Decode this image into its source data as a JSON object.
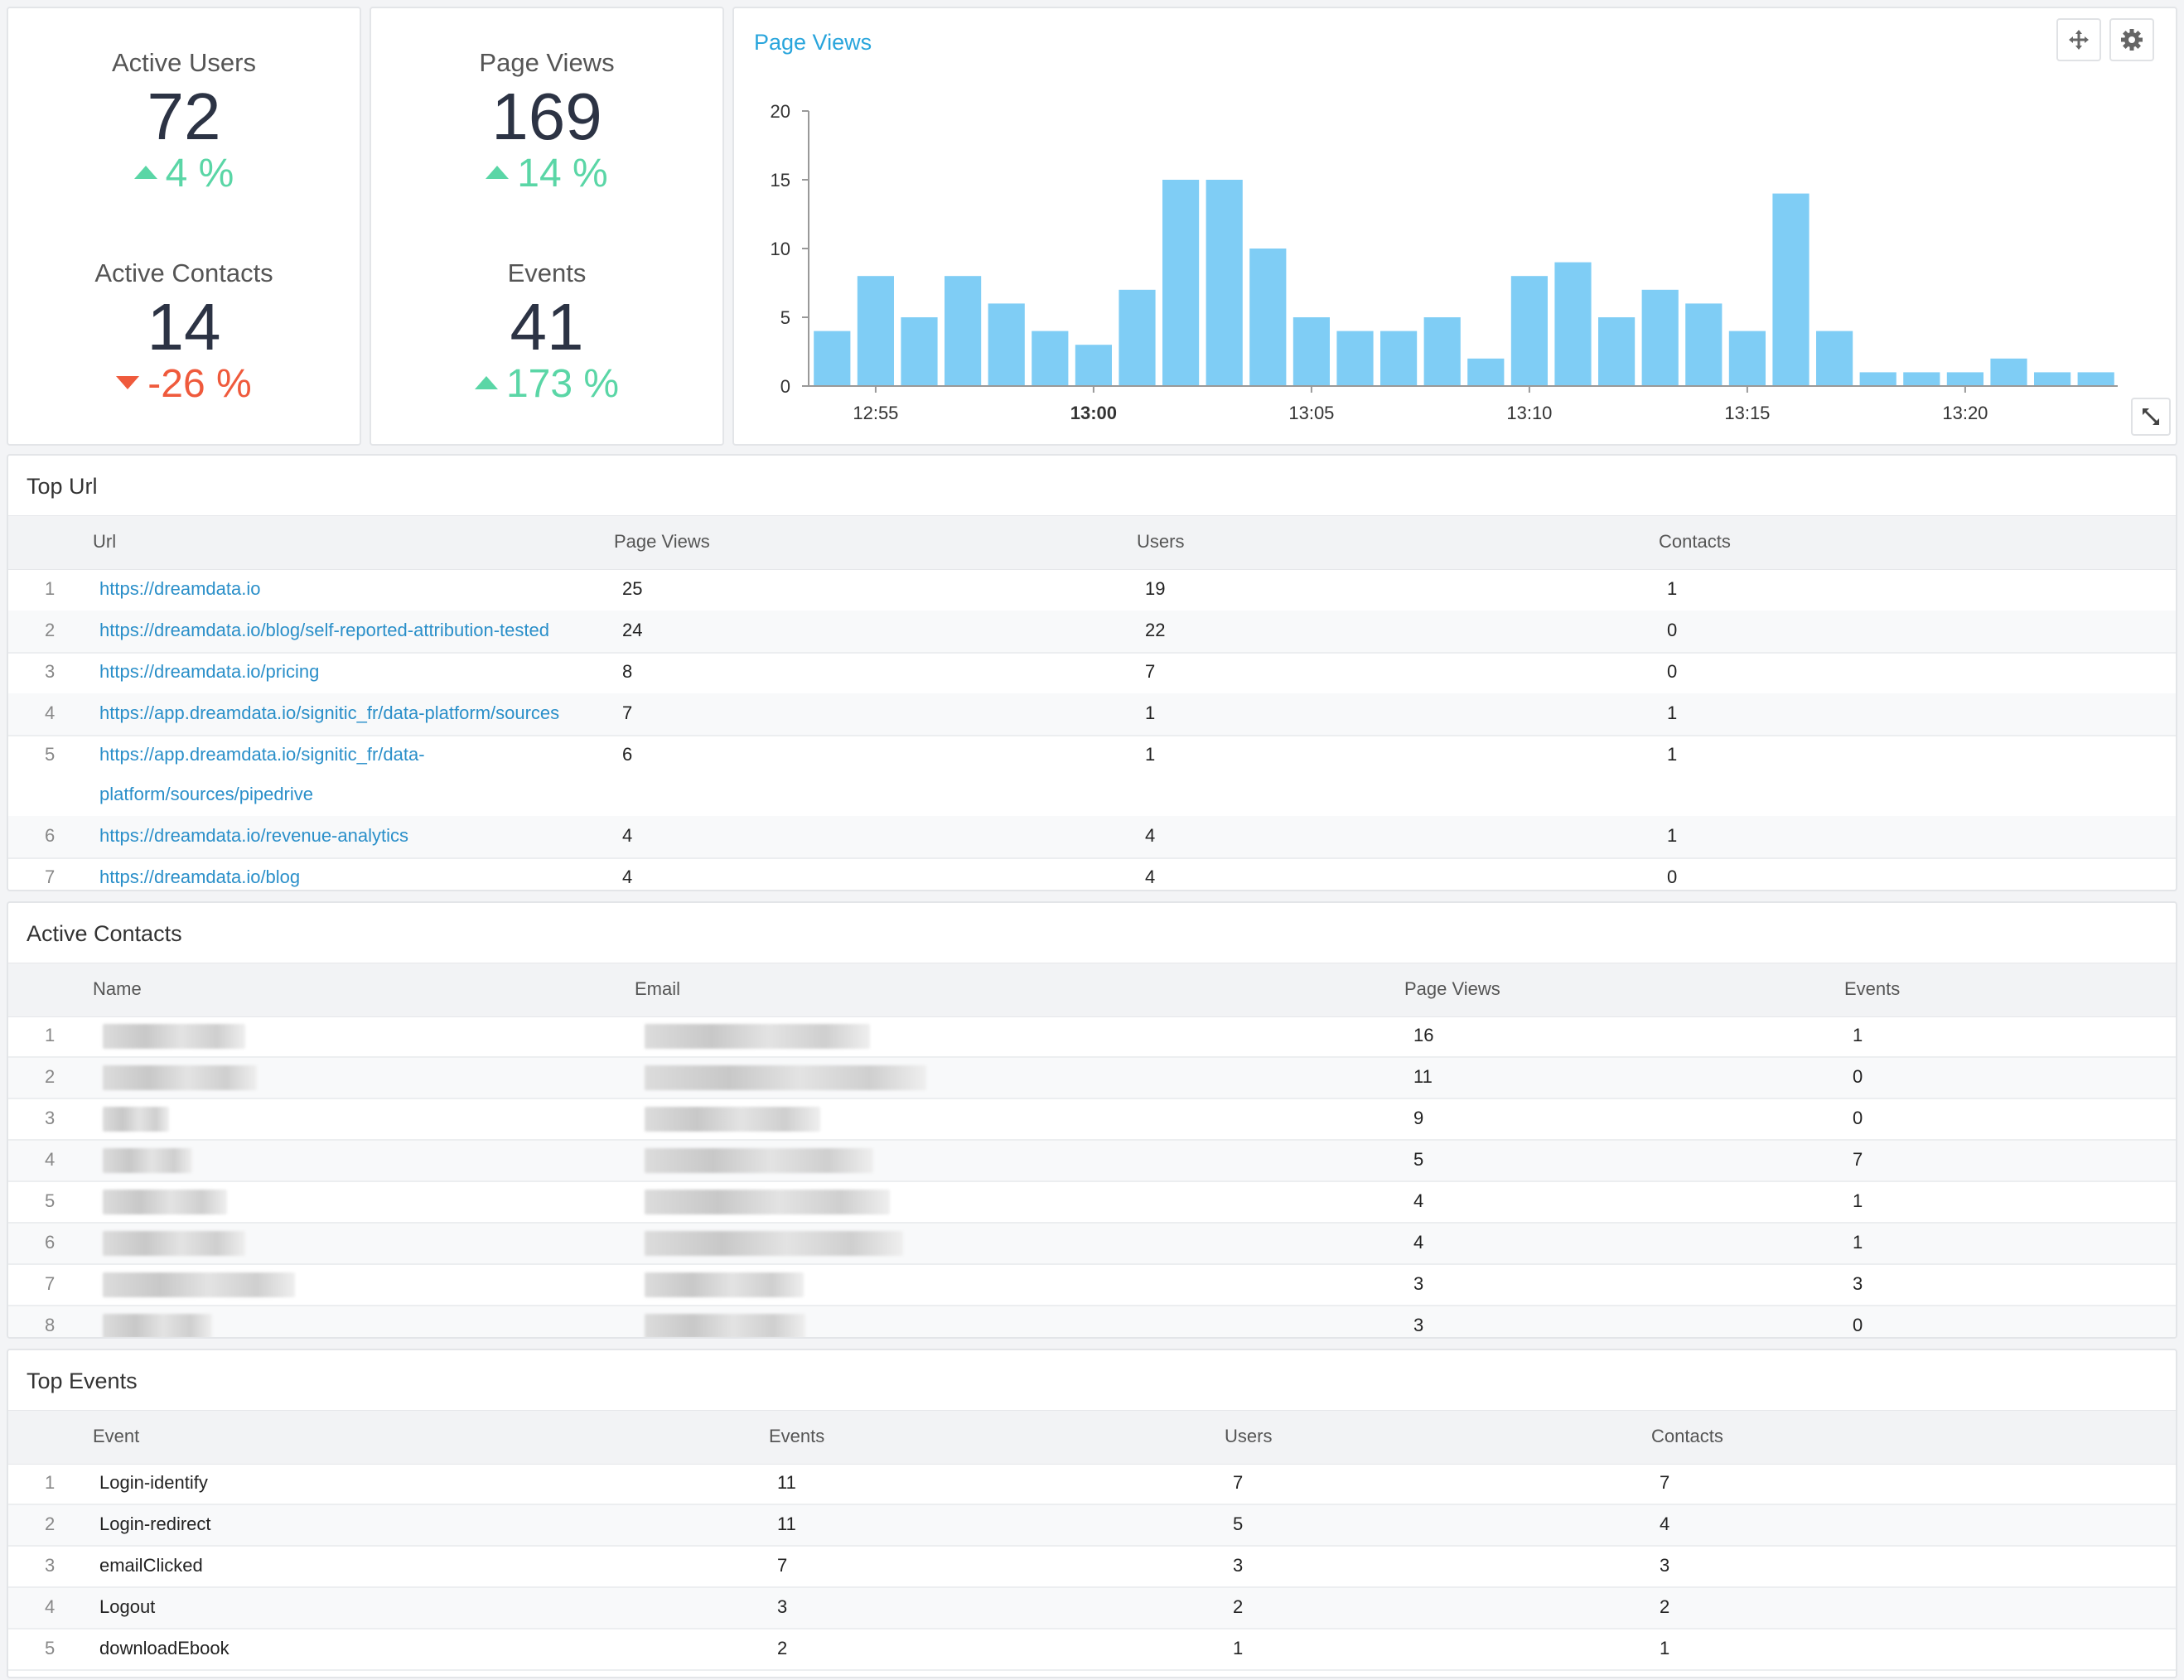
{
  "kpis": {
    "active_users": {
      "label": "Active Users",
      "value": "72",
      "delta": "4 %",
      "direction": "up"
    },
    "page_views": {
      "label": "Page Views",
      "value": "169",
      "delta": "14 %",
      "direction": "up"
    },
    "active_contacts": {
      "label": "Active Contacts",
      "value": "14",
      "delta": "-26 %",
      "direction": "down"
    },
    "events": {
      "label": "Events",
      "value": "41",
      "delta": "173 %",
      "direction": "up"
    }
  },
  "chart_panel": {
    "title": "Page Views",
    "tools": {
      "move_icon": "move-icon",
      "settings_icon": "gear-icon",
      "expand_icon": "expand-icon"
    }
  },
  "chart_data": {
    "type": "bar",
    "values": [
      4,
      8,
      5,
      8,
      6,
      4,
      3,
      7,
      15,
      15,
      10,
      5,
      4,
      4,
      5,
      2,
      8,
      9,
      5,
      7,
      6,
      4,
      14,
      4,
      1,
      1,
      1,
      2,
      1,
      1
    ],
    "x_tick_labels": [
      "12:55",
      "13:00",
      "13:05",
      "13:10",
      "13:15",
      "13:20"
    ],
    "bold_tick": "13:00",
    "y_ticks": [
      "0",
      "5",
      "10",
      "15",
      "20"
    ],
    "ylim": [
      0,
      20
    ],
    "bar_color": "#7fcdf5",
    "grid": false
  },
  "top_url": {
    "title": "Top Url",
    "headers": [
      "Url",
      "Page Views",
      "Users",
      "Contacts"
    ],
    "rows": [
      {
        "idx": "1",
        "url": "https://dreamdata.io",
        "url2": "",
        "pv": "25",
        "users": "19",
        "contacts": "1"
      },
      {
        "idx": "2",
        "url": "https://dreamdata.io/blog/self-reported-attribution-tested",
        "url2": "",
        "pv": "24",
        "users": "22",
        "contacts": "0"
      },
      {
        "idx": "3",
        "url": "https://dreamdata.io/pricing",
        "url2": "",
        "pv": "8",
        "users": "7",
        "contacts": "0"
      },
      {
        "idx": "4",
        "url": "https://app.dreamdata.io/signitic_fr/data-platform/sources",
        "url2": "",
        "pv": "7",
        "users": "1",
        "contacts": "1"
      },
      {
        "idx": "5",
        "url": "https://app.dreamdata.io/signitic_fr/data-",
        "url2": "platform/sources/pipedrive",
        "pv": "6",
        "users": "1",
        "contacts": "1"
      },
      {
        "idx": "6",
        "url": "https://dreamdata.io/revenue-analytics",
        "url2": "",
        "pv": "4",
        "users": "4",
        "contacts": "1"
      },
      {
        "idx": "7",
        "url": "https://dreamdata.io/blog",
        "url2": "",
        "pv": "4",
        "users": "4",
        "contacts": "0"
      }
    ]
  },
  "active_contacts": {
    "title": "Active Contacts",
    "headers": [
      "Name",
      "Email",
      "Page Views",
      "Events"
    ],
    "rows": [
      {
        "idx": "1",
        "pv": "16",
        "events": "1"
      },
      {
        "idx": "2",
        "pv": "11",
        "events": "0"
      },
      {
        "idx": "3",
        "pv": "9",
        "events": "0"
      },
      {
        "idx": "4",
        "pv": "5",
        "events": "7"
      },
      {
        "idx": "5",
        "pv": "4",
        "events": "1"
      },
      {
        "idx": "6",
        "pv": "4",
        "events": "1"
      },
      {
        "idx": "7",
        "pv": "3",
        "events": "3"
      },
      {
        "idx": "8",
        "pv": "3",
        "events": "0"
      }
    ]
  },
  "top_events": {
    "title": "Top Events",
    "headers": [
      "Event",
      "Events",
      "Users",
      "Contacts"
    ],
    "rows": [
      {
        "idx": "1",
        "event": "Login-identify",
        "events": "11",
        "users": "7",
        "contacts": "7"
      },
      {
        "idx": "2",
        "event": "Login-redirect",
        "events": "11",
        "users": "5",
        "contacts": "4"
      },
      {
        "idx": "3",
        "event": "emailClicked",
        "events": "7",
        "users": "3",
        "contacts": "3"
      },
      {
        "idx": "4",
        "event": "Logout",
        "events": "3",
        "users": "2",
        "contacts": "2"
      },
      {
        "idx": "5",
        "event": "downloadEbook",
        "events": "2",
        "users": "1",
        "contacts": "1"
      }
    ]
  }
}
